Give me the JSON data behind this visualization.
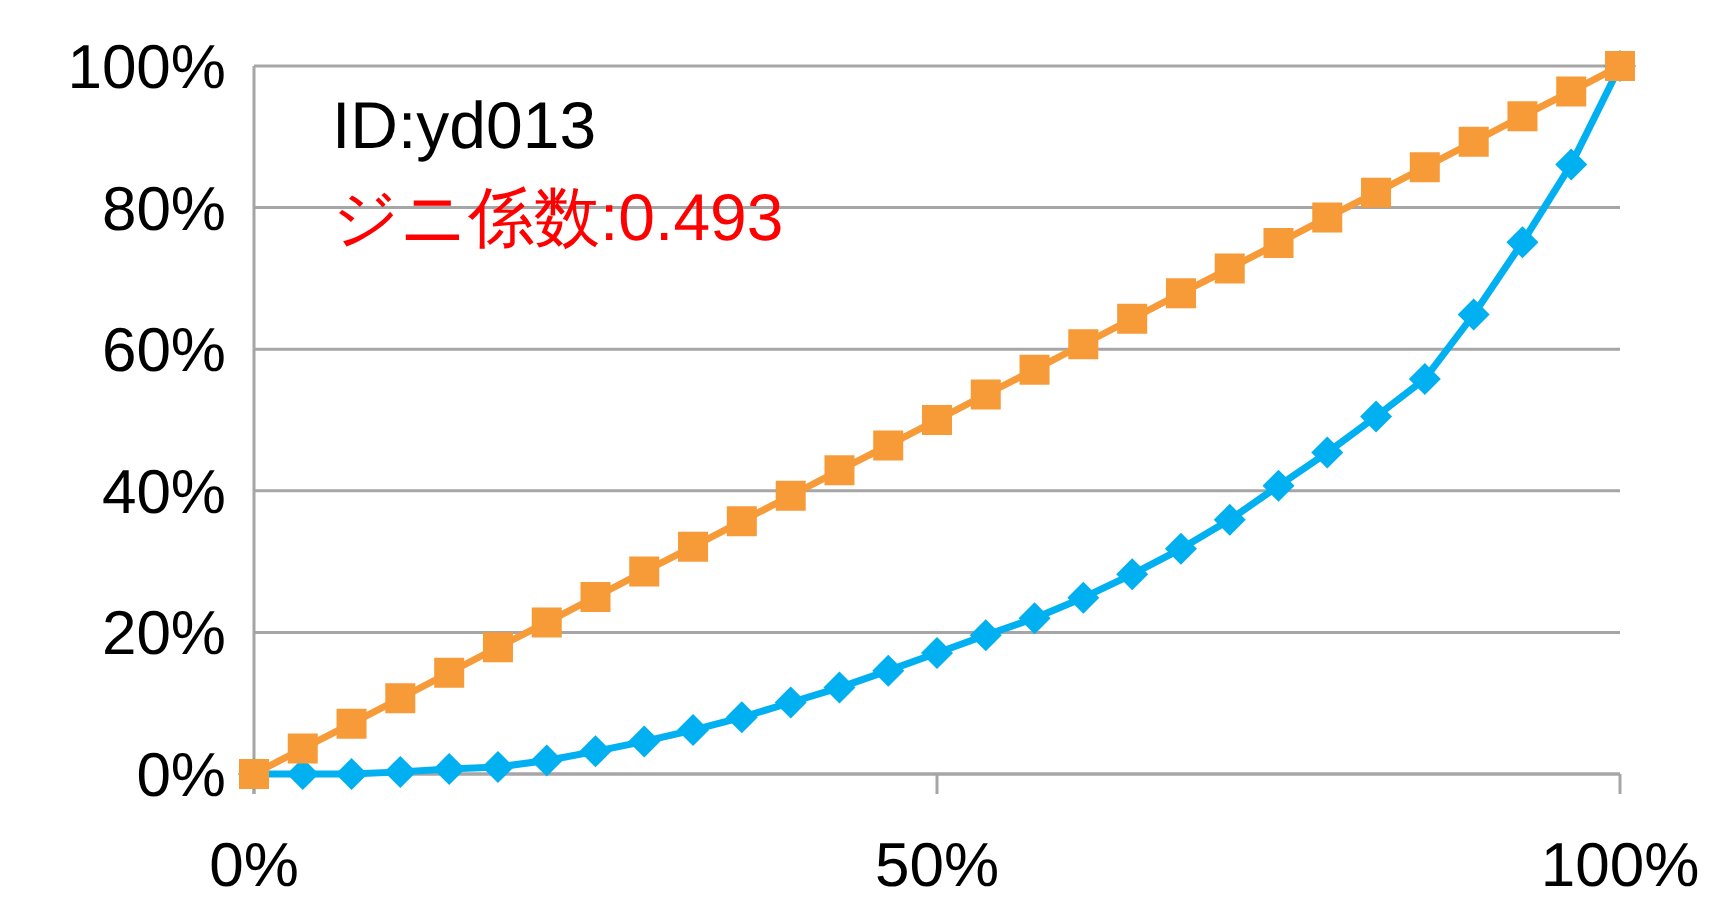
{
  "chart_data": {
    "type": "line",
    "x": [
      0,
      3.57,
      7.14,
      10.71,
      14.29,
      17.86,
      21.43,
      25,
      28.57,
      32.14,
      35.71,
      39.29,
      42.86,
      46.43,
      50,
      53.57,
      57.14,
      60.71,
      64.29,
      67.86,
      71.43,
      75,
      78.57,
      82.14,
      85.71,
      89.29,
      92.86,
      96.43,
      100
    ],
    "series": [
      {
        "color": "#f79a38",
        "marker": "square",
        "values": [
          0,
          3.6,
          7.1,
          10.7,
          14.3,
          17.9,
          21.4,
          25,
          28.6,
          32.1,
          35.7,
          39.3,
          42.9,
          46.4,
          50,
          53.6,
          57.1,
          60.7,
          64.3,
          67.9,
          71.4,
          75,
          78.6,
          82.1,
          85.7,
          89.3,
          92.9,
          96.4,
          100
        ]
      },
      {
        "color": "#00b0f0",
        "marker": "diamond",
        "values": [
          0,
          0,
          0,
          0.3,
          0.7,
          1.0,
          1.9,
          3.2,
          4.6,
          6.2,
          8.0,
          10.1,
          12.2,
          14.6,
          17.1,
          19.6,
          22.0,
          24.9,
          28.2,
          31.8,
          35.9,
          40.7,
          45.4,
          50.5,
          55.8,
          64.9,
          75.1,
          86.1,
          100
        ]
      }
    ],
    "xlim": [
      0,
      100
    ],
    "ylim": [
      0,
      100
    ],
    "xticks": [
      {
        "value": 0,
        "label": "0%"
      },
      {
        "value": 50,
        "label": "50%"
      },
      {
        "value": 100,
        "label": "100%"
      }
    ],
    "yticks": [
      {
        "value": 0,
        "label": "0%"
      },
      {
        "value": 20,
        "label": "20%"
      },
      {
        "value": 40,
        "label": "40%"
      },
      {
        "value": 60,
        "label": "60%"
      },
      {
        "value": 80,
        "label": "80%"
      },
      {
        "value": 100,
        "label": "100%"
      }
    ],
    "grid": "y",
    "line_style": "solid",
    "annotations": [
      "ID:yd013",
      "ジニ係数:0.493"
    ]
  }
}
